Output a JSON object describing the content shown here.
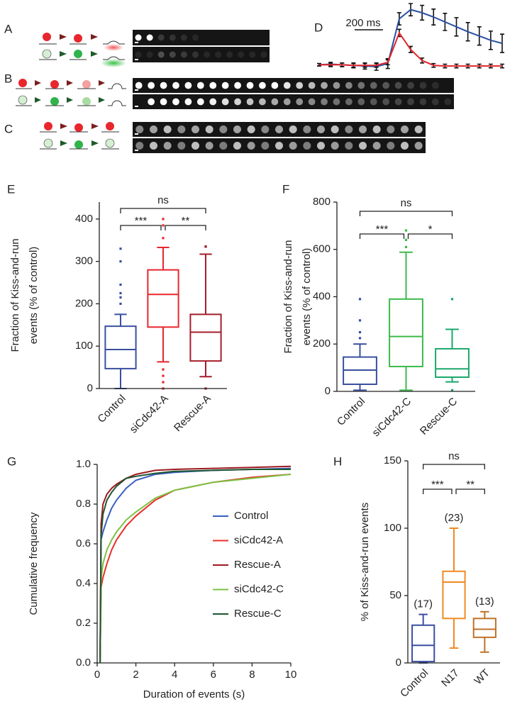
{
  "panel_labels": [
    "A",
    "B",
    "C",
    "D",
    "E",
    "F",
    "G",
    "H"
  ],
  "chart_data": [
    {
      "type": "line",
      "scale_bar": "200 ms",
      "x": [
        0,
        80,
        160,
        240,
        320,
        400,
        480,
        560,
        640,
        720,
        800,
        880,
        960,
        1040,
        1120,
        1200,
        1280
      ],
      "xlim": [
        0,
        1280
      ],
      "ylim": [
        0,
        1.1
      ],
      "series": [
        {
          "color": "#2b4fa2",
          "values": [
            0.1,
            0.11,
            0.1,
            0.09,
            0.08,
            0.07,
            0.12,
            0.85,
            1.0,
            0.95,
            0.88,
            0.8,
            0.72,
            0.64,
            0.57,
            0.5,
            0.45
          ],
          "errors": [
            0.02,
            0.03,
            0.03,
            0.04,
            0.05,
            0.06,
            0.08,
            0.1,
            0.1,
            0.12,
            0.13,
            0.14,
            0.15,
            0.15,
            0.15,
            0.15,
            0.15
          ]
        },
        {
          "color": "#e3262d",
          "values": [
            0.1,
            0.1,
            0.1,
            0.09,
            0.09,
            0.09,
            0.14,
            0.62,
            0.35,
            0.17,
            0.09,
            0.08,
            0.08,
            0.08,
            0.08,
            0.08,
            0.08
          ],
          "errors": [
            0.02,
            0.03,
            0.03,
            0.03,
            0.03,
            0.03,
            0.04,
            0.06,
            0.05,
            0.04,
            0.03,
            0.03,
            0.03,
            0.03,
            0.03,
            0.03,
            0.03
          ]
        }
      ]
    },
    {
      "type": "box",
      "ylabel": [
        "Fraction of Kiss-and-run",
        "events    (% of control)"
      ],
      "categories": [
        "Control",
        "siCdc42-A",
        "Rescue-A"
      ],
      "colors": [
        "#3a4fa0",
        "#e8262c",
        "#a51d2a"
      ],
      "ylim": [
        0,
        440
      ],
      "yticks": [
        0,
        100,
        200,
        300,
        400
      ],
      "boxes": [
        {
          "low": 0,
          "q1": 47,
          "median": 92,
          "q3": 147,
          "high": 175,
          "outliers": [
            200,
            215,
            225,
            245,
            300,
            330
          ]
        },
        {
          "low": 63,
          "q1": 145,
          "median": 222,
          "q3": 280,
          "high": 333,
          "outliers": [
            0,
            15,
            30,
            45,
            355,
            385,
            400
          ]
        },
        {
          "low": 28,
          "q1": 65,
          "median": 133,
          "q3": 175,
          "high": 317,
          "outliers": [
            0,
            335,
            335
          ]
        }
      ],
      "annotations": [
        {
          "from": "Control",
          "to": "Rescue-A",
          "label": "ns"
        },
        {
          "from": "Control",
          "to": "siCdc42-A",
          "label": "***"
        },
        {
          "from": "siCdc42-A",
          "to": "Rescue-A",
          "label": "**"
        }
      ]
    },
    {
      "type": "box",
      "ylabel": [
        "Fraction of Kiss-and-run",
        "events    (% of control)"
      ],
      "categories": [
        "Control",
        "siCdc42-C",
        "Rescue-C"
      ],
      "colors": [
        "#3a4fa0",
        "#3dba4c",
        "#1aa86b"
      ],
      "ylim": [
        0,
        800
      ],
      "yticks": [
        0,
        200,
        400,
        600,
        800
      ],
      "boxes": [
        {
          "low": 5,
          "q1": 30,
          "median": 90,
          "q3": 145,
          "high": 200,
          "outliers": [
            225,
            250,
            300,
            390
          ]
        },
        {
          "low": 5,
          "q1": 105,
          "median": 232,
          "q3": 390,
          "high": 588,
          "outliers": [
            610,
            640,
            680
          ]
        },
        {
          "low": 40,
          "q1": 60,
          "median": 95,
          "q3": 180,
          "high": 262,
          "outliers": [
            5,
            390
          ]
        }
      ],
      "annotations": [
        {
          "from": "Control",
          "to": "Rescue-C",
          "label": "ns"
        },
        {
          "from": "Control",
          "to": "siCdc42-C",
          "label": "***"
        },
        {
          "from": "siCdc42-C",
          "to": "Rescue-C",
          "label": "*"
        }
      ]
    },
    {
      "type": "line",
      "xlabel": "Duration of events (s)",
      "ylabel": "Cumulative frequency",
      "x": [
        0.15,
        0.2,
        0.3,
        0.5,
        0.75,
        1,
        1.5,
        2,
        3,
        4,
        6,
        8,
        10
      ],
      "xlim": [
        0,
        10
      ],
      "xticks": [
        0,
        2,
        4,
        6,
        8,
        10
      ],
      "ylim": [
        0,
        1
      ],
      "yticks": [
        {
          "value": 0,
          "label": "0.0"
        },
        0.2,
        0.4,
        0.6,
        0.8,
        {
          "value": 1,
          "label": "1.0"
        }
      ],
      "series": [
        {
          "name": "Control",
          "color": "#3a5fc0",
          "values": [
            0,
            0.62,
            0.66,
            0.72,
            0.78,
            0.82,
            0.88,
            0.92,
            0.95,
            0.96,
            0.97,
            0.975,
            0.98
          ]
        },
        {
          "name": "siCdc42-A",
          "color": "#e8302c",
          "values": [
            0,
            0.38,
            0.43,
            0.5,
            0.57,
            0.62,
            0.69,
            0.74,
            0.82,
            0.87,
            0.91,
            0.935,
            0.95
          ]
        },
        {
          "name": "Rescue-A",
          "color": "#9e1a20",
          "values": [
            0,
            0.7,
            0.8,
            0.85,
            0.88,
            0.9,
            0.93,
            0.95,
            0.97,
            0.975,
            0.98,
            0.985,
            0.99
          ]
        },
        {
          "name": "siCdc42-C",
          "color": "#7cc242",
          "values": [
            0,
            0.42,
            0.5,
            0.57,
            0.62,
            0.66,
            0.72,
            0.76,
            0.83,
            0.87,
            0.91,
            0.93,
            0.95
          ]
        },
        {
          "name": "Rescue-C",
          "color": "#1e5631",
          "values": [
            0,
            0.64,
            0.75,
            0.82,
            0.86,
            0.89,
            0.93,
            0.94,
            0.955,
            0.965,
            0.97,
            0.975,
            0.975
          ]
        }
      ]
    },
    {
      "type": "box",
      "ylabel": "% of Kiss-and-run events",
      "categories": [
        "Control",
        "N17",
        "WT"
      ],
      "colors": [
        "#3a4fa0",
        "#f08a24",
        "#c0722a"
      ],
      "ylim": [
        0,
        150
      ],
      "yticks": [
        0,
        50,
        100,
        150
      ],
      "n_labels": [
        "(17)",
        "(23)",
        "(13)"
      ],
      "boxes": [
        {
          "low": 0,
          "q1": 1,
          "median": 13,
          "q3": 28,
          "high": 36,
          "outliers": []
        },
        {
          "low": 11,
          "q1": 33,
          "median": 60,
          "q3": 68,
          "high": 100,
          "outliers": []
        },
        {
          "low": 8,
          "q1": 19,
          "median": 25,
          "q3": 33,
          "high": 38,
          "outliers": []
        }
      ],
      "annotations": [
        {
          "from": "Control",
          "to": "WT",
          "label": "ns"
        },
        {
          "from": "Control",
          "to": "N17",
          "label": "***"
        },
        {
          "from": "N17",
          "to": "WT",
          "label": "**"
        }
      ]
    }
  ]
}
